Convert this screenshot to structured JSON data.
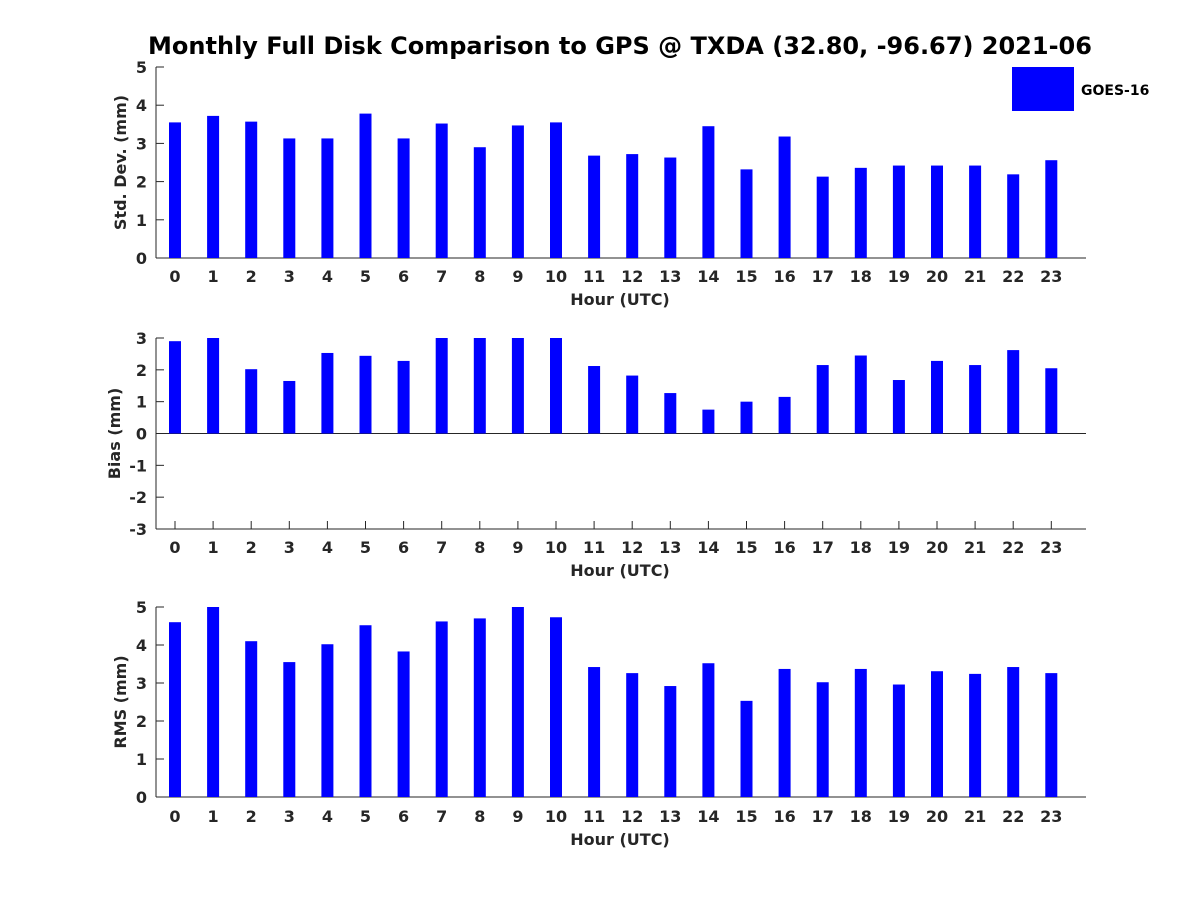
{
  "chart_data": [
    {
      "type": "bar",
      "title": "Monthly Full Disk Comparison to GPS @ TXDA (32.80, -96.67) 2021-06",
      "xlabel": "Hour (UTC)",
      "ylabel": "Std. Dev. (mm)",
      "categories": [
        "0",
        "1",
        "2",
        "3",
        "4",
        "5",
        "6",
        "7",
        "8",
        "9",
        "10",
        "11",
        "12",
        "13",
        "14",
        "15",
        "16",
        "17",
        "18",
        "19",
        "20",
        "21",
        "22",
        "23"
      ],
      "series": [
        {
          "name": "GOES-16",
          "color": "#0000ff",
          "values": [
            3.55,
            3.72,
            3.57,
            3.13,
            3.13,
            3.78,
            3.13,
            3.52,
            2.9,
            3.47,
            3.55,
            2.68,
            2.72,
            2.63,
            3.45,
            2.32,
            3.18,
            2.13,
            2.36,
            2.42,
            2.42,
            2.42,
            2.19,
            2.56
          ]
        }
      ],
      "ylim": [
        0,
        5
      ],
      "yticks": [
        "0",
        "1",
        "2",
        "3",
        "4",
        "5"
      ],
      "legend": "top-right"
    },
    {
      "type": "bar",
      "xlabel": "Hour (UTC)",
      "ylabel": "Bias (mm)",
      "categories": [
        "0",
        "1",
        "2",
        "3",
        "4",
        "5",
        "6",
        "7",
        "8",
        "9",
        "10",
        "11",
        "12",
        "13",
        "14",
        "15",
        "16",
        "17",
        "18",
        "19",
        "20",
        "21",
        "22",
        "23"
      ],
      "series": [
        {
          "color": "#0000ff",
          "values": [
            2.9,
            3.0,
            2.02,
            1.65,
            2.53,
            2.44,
            2.28,
            3.0,
            3.0,
            3.0,
            3.0,
            2.12,
            1.82,
            1.27,
            0.75,
            1.0,
            1.15,
            2.15,
            2.45,
            1.68,
            2.28,
            2.15,
            2.62,
            2.05
          ]
        }
      ],
      "ylim": [
        -3,
        3
      ],
      "yticks": [
        "-3",
        "-2",
        "-1",
        "0",
        "1",
        "2",
        "3"
      ]
    },
    {
      "type": "bar",
      "xlabel": "Hour (UTC)",
      "ylabel": "RMS (mm)",
      "categories": [
        "0",
        "1",
        "2",
        "3",
        "4",
        "5",
        "6",
        "7",
        "8",
        "9",
        "10",
        "11",
        "12",
        "13",
        "14",
        "15",
        "16",
        "17",
        "18",
        "19",
        "20",
        "21",
        "22",
        "23"
      ],
      "series": [
        {
          "color": "#0000ff",
          "values": [
            4.6,
            5.0,
            4.1,
            3.55,
            4.02,
            4.52,
            3.83,
            4.62,
            4.7,
            5.0,
            4.73,
            3.42,
            3.26,
            2.92,
            3.52,
            2.53,
            3.37,
            3.02,
            3.37,
            2.96,
            3.31,
            3.24,
            3.42,
            3.26
          ]
        }
      ],
      "ylim": [
        0,
        5
      ],
      "yticks": [
        "0",
        "1",
        "2",
        "3",
        "4",
        "5"
      ]
    }
  ],
  "legend": {
    "label": "GOES-16",
    "color": "#0000ff"
  }
}
